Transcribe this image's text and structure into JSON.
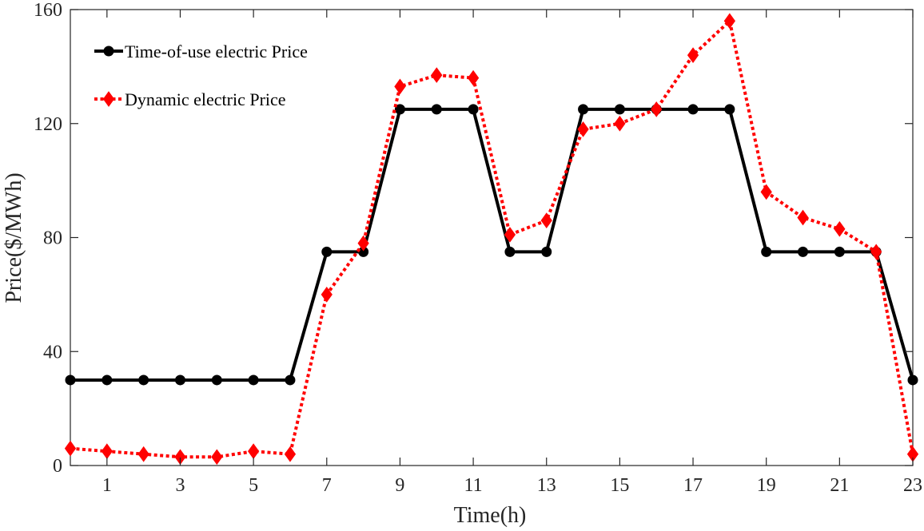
{
  "chart_data": {
    "type": "line",
    "title": "",
    "xlabel": "Time(h)",
    "ylabel": "Price($/MWh)",
    "xlim": [
      0,
      23
    ],
    "ylim": [
      0,
      160
    ],
    "x_ticks": [
      1,
      3,
      5,
      7,
      9,
      11,
      13,
      15,
      17,
      19,
      21,
      23
    ],
    "x_tick_labels": [
      "1",
      "3",
      "5",
      "7",
      "9",
      "11",
      "13",
      "15",
      "17",
      "19",
      "21",
      "23"
    ],
    "y_ticks": [
      0,
      40,
      80,
      120,
      160
    ],
    "y_tick_labels": [
      "0",
      "40",
      "80",
      "120",
      "160"
    ],
    "grid": false,
    "legend_position": "top-left",
    "x": [
      0,
      1,
      2,
      3,
      4,
      5,
      6,
      7,
      8,
      9,
      10,
      11,
      12,
      13,
      14,
      15,
      16,
      17,
      18,
      19,
      20,
      21,
      22,
      23
    ],
    "series": [
      {
        "name": "Time-of-use electric Price",
        "color": "#000000",
        "line_style": "solid",
        "marker": "circle",
        "values": [
          30,
          30,
          30,
          30,
          30,
          30,
          30,
          75,
          75,
          125,
          125,
          125,
          75,
          75,
          125,
          125,
          125,
          125,
          125,
          75,
          75,
          75,
          75,
          30
        ]
      },
      {
        "name": "Dynamic electric Price",
        "color": "#ff0000",
        "line_style": "dotted",
        "marker": "diamond",
        "values": [
          6,
          5,
          4,
          3,
          3,
          5,
          4,
          60,
          78,
          133,
          137,
          136,
          81,
          86,
          118,
          120,
          125,
          144,
          156,
          96,
          87,
          83,
          75,
          4
        ]
      }
    ]
  }
}
